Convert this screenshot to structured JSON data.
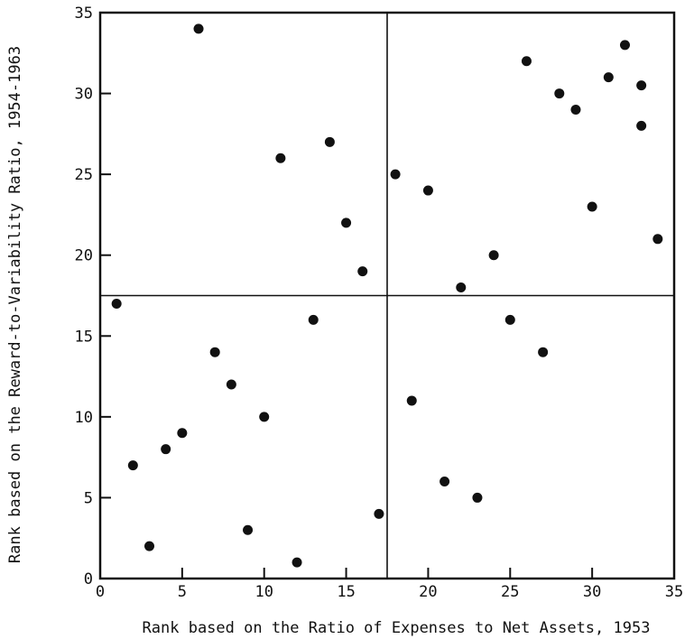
{
  "chart_data": {
    "type": "scatter",
    "title": "",
    "xlabel": "Rank based on the Ratio of Expenses to Net Assets, 1953",
    "ylabel": "Rank based on the Reward-to-Variability Ratio, 1954-1963",
    "xlim": [
      0,
      35
    ],
    "ylim": [
      0,
      35
    ],
    "xticks": [
      0,
      5,
      10,
      15,
      20,
      25,
      30,
      35
    ],
    "yticks": [
      0,
      5,
      10,
      15,
      20,
      25,
      30,
      35
    ],
    "grid": false,
    "quadrant_lines": {
      "x": 17.5,
      "y": 17.5
    },
    "points": [
      {
        "x": 1,
        "y": 17
      },
      {
        "x": 2,
        "y": 7
      },
      {
        "x": 3,
        "y": 2
      },
      {
        "x": 4,
        "y": 8
      },
      {
        "x": 5,
        "y": 9
      },
      {
        "x": 6,
        "y": 34
      },
      {
        "x": 7,
        "y": 14
      },
      {
        "x": 8,
        "y": 12
      },
      {
        "x": 9,
        "y": 3
      },
      {
        "x": 10,
        "y": 10
      },
      {
        "x": 11,
        "y": 26
      },
      {
        "x": 12,
        "y": 1
      },
      {
        "x": 13,
        "y": 16
      },
      {
        "x": 14,
        "y": 27
      },
      {
        "x": 15,
        "y": 22
      },
      {
        "x": 16,
        "y": 19
      },
      {
        "x": 17,
        "y": 4
      },
      {
        "x": 18,
        "y": 25
      },
      {
        "x": 19,
        "y": 11
      },
      {
        "x": 20,
        "y": 24
      },
      {
        "x": 21,
        "y": 6
      },
      {
        "x": 22,
        "y": 18
      },
      {
        "x": 23,
        "y": 5
      },
      {
        "x": 24,
        "y": 20
      },
      {
        "x": 25,
        "y": 16
      },
      {
        "x": 26,
        "y": 32
      },
      {
        "x": 27,
        "y": 14
      },
      {
        "x": 28,
        "y": 30
      },
      {
        "x": 29,
        "y": 29
      },
      {
        "x": 30,
        "y": 23
      },
      {
        "x": 31,
        "y": 31
      },
      {
        "x": 32,
        "y": 33
      },
      {
        "x": 33,
        "y": 30.5
      },
      {
        "x": 33,
        "y": 28
      },
      {
        "x": 34,
        "y": 21
      }
    ]
  }
}
